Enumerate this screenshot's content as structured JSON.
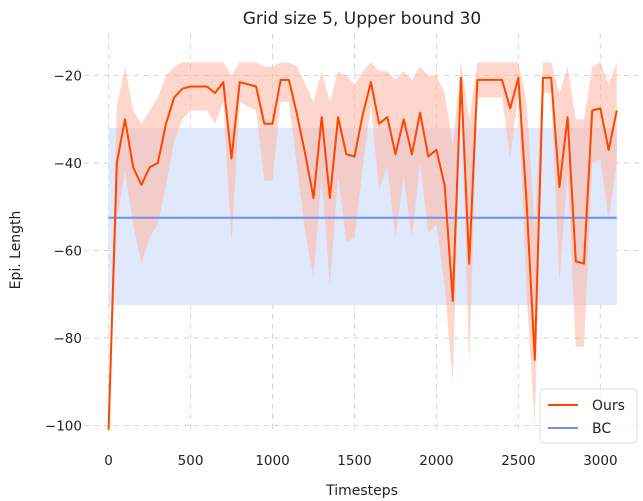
{
  "chart_data": {
    "type": "line",
    "title": "Grid size 5, Upper bound 30",
    "xlabel": "Timesteps",
    "ylabel": "Epi. Length",
    "xlim": [
      -150,
      3260
    ],
    "ylim": [
      -101.5,
      -10.5
    ],
    "xticks": [
      0,
      500,
      1000,
      1500,
      2000,
      2500,
      3000
    ],
    "yticks": [
      -100,
      -80,
      -60,
      -40,
      -20
    ],
    "xtick_labels": [
      "0",
      "500",
      "1000",
      "1500",
      "2000",
      "2500",
      "3000"
    ],
    "ytick_labels": [
      "−100",
      "−80",
      "−60",
      "−40",
      "−20"
    ],
    "grid": true,
    "legend_position": "lower-right",
    "legend": [
      "Ours",
      "BC"
    ],
    "series": [
      {
        "name": "Ours",
        "color": "#ff4500",
        "band_color": "#ffb4a0",
        "x": [
          0,
          50,
          100,
          150,
          200,
          250,
          300,
          350,
          400,
          450,
          500,
          550,
          600,
          650,
          700,
          750,
          800,
          850,
          900,
          950,
          1000,
          1050,
          1100,
          1150,
          1200,
          1250,
          1300,
          1350,
          1400,
          1450,
          1500,
          1550,
          1600,
          1650,
          1700,
          1750,
          1800,
          1850,
          1900,
          1950,
          2000,
          2050,
          2100,
          2150,
          2200,
          2250,
          2300,
          2350,
          2400,
          2450,
          2500,
          2550,
          2600,
          2650,
          2700,
          2750,
          2800,
          2850,
          2900,
          2950,
          3000,
          3050,
          3100
        ],
        "values": [
          -101,
          -40,
          -30,
          -41,
          -45,
          -41,
          -40,
          -31,
          -25,
          -23,
          -22.5,
          -22.5,
          -22.5,
          -24,
          -21.5,
          -39,
          -21.5,
          -22,
          -22.5,
          -31,
          -31,
          -21,
          -21,
          -29,
          -38,
          -48,
          -29.5,
          -48,
          -29.5,
          -38,
          -38.5,
          -29,
          -21.5,
          -31,
          -29.5,
          -38,
          -30,
          -38,
          -28.5,
          -38.5,
          -37,
          -45,
          -71.5,
          -20.5,
          -63,
          -21,
          -21,
          -21,
          -21,
          -27.5,
          -20.5,
          -49,
          -85,
          -20.5,
          -20.5,
          -45.5,
          -29.5,
          -62.5,
          -63,
          -28,
          -27.5,
          -37,
          -28
        ],
        "upper": [
          -101,
          -27,
          -18,
          -28,
          -31,
          -28,
          -25,
          -20,
          -18,
          -17,
          -17,
          -17,
          -17,
          -17,
          -17,
          -20,
          -17,
          -17,
          -17,
          -18,
          -18,
          -17,
          -17,
          -18,
          -22,
          -26,
          -19,
          -26,
          -19,
          -20,
          -22,
          -19,
          -17,
          -19,
          -19,
          -21,
          -19,
          -21,
          -18,
          -20,
          -20,
          -24,
          -36,
          -17,
          -30,
          -17,
          -17,
          -17,
          -17,
          -17,
          -17,
          -26,
          -55,
          -17,
          -17,
          -24,
          -18,
          -30,
          -30,
          -18,
          -17,
          -22,
          -17
        ],
        "lower": [
          -101,
          -53,
          -42,
          -54,
          -63,
          -57,
          -54,
          -45,
          -35,
          -30,
          -28,
          -28,
          -28,
          -31,
          -26,
          -58,
          -26,
          -27,
          -28,
          -44,
          -44,
          -26,
          -26,
          -41,
          -56,
          -66,
          -43,
          -68,
          -43,
          -58,
          -57,
          -41,
          -27,
          -46,
          -41,
          -57,
          -43,
          -57,
          -40,
          -56,
          -54,
          -68,
          -90,
          -24,
          -86,
          -25,
          -25,
          -25,
          -25,
          -39,
          -24,
          -70,
          -100,
          -24,
          -24,
          -67,
          -42,
          -82,
          -82,
          -40,
          -39,
          -53,
          -40
        ]
      },
      {
        "name": "BC",
        "color": "#6f8ef0",
        "band_color": "#dde5fb",
        "x": [
          0,
          3100
        ],
        "values": [
          -52.5,
          -52.5
        ],
        "upper": [
          -32,
          -32
        ],
        "lower": [
          -72.5,
          -72.5
        ]
      }
    ]
  }
}
